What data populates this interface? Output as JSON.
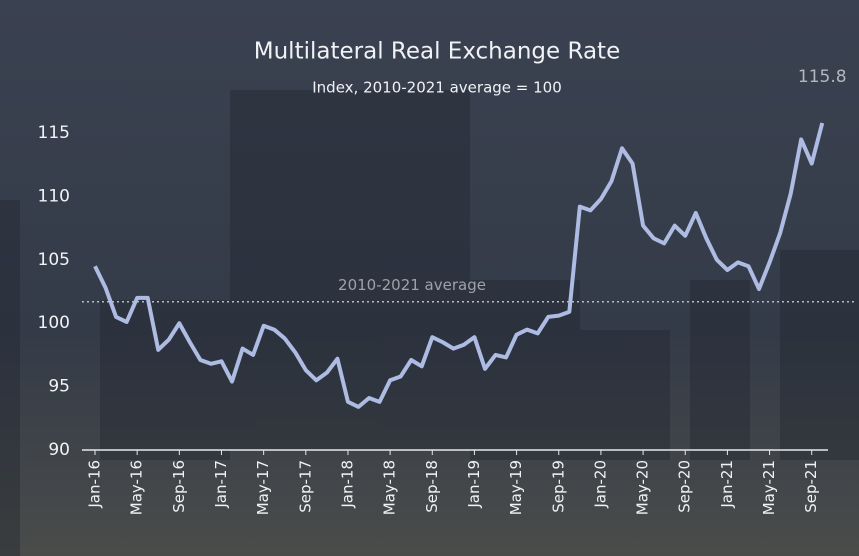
{
  "chart_data": {
    "type": "line",
    "title": "Multilateral Real Exchange Rate",
    "subtitle": "Index, 2010-2021 average = 100",
    "categories": [
      "Jan-16",
      null,
      null,
      null,
      "May-16",
      null,
      null,
      null,
      "Sep-16",
      null,
      null,
      null,
      "Jan-17",
      null,
      null,
      null,
      "May-17",
      null,
      null,
      null,
      "Sep-17",
      null,
      null,
      null,
      "Jan-18",
      null,
      null,
      null,
      "May-18",
      null,
      null,
      null,
      "Sep-18",
      null,
      null,
      null,
      "Jan-19",
      null,
      null,
      null,
      "May-19",
      null,
      null,
      null,
      "Sep-19",
      null,
      null,
      null,
      "Jan-20",
      null,
      null,
      null,
      "May-20",
      null,
      null,
      null,
      "Sep-20",
      null,
      null,
      null,
      "Jan-21",
      null,
      null,
      null,
      "May-21",
      null,
      null,
      null,
      "Sep-21",
      null
    ],
    "series": [
      {
        "name": "Multilateral Real Exchange Rate",
        "color": "#aebbe2",
        "values": [
          104.5,
          102.8,
          100.5,
          100.1,
          102,
          102,
          97.9,
          98.7,
          100,
          98.5,
          97.1,
          96.8,
          97,
          95.4,
          98,
          97.5,
          99.8,
          99.5,
          98.8,
          97.7,
          96.3,
          95.5,
          96.1,
          97.2,
          93.8,
          93.4,
          94.1,
          93.8,
          95.5,
          95.8,
          97.1,
          96.6,
          98.9,
          98.5,
          98,
          98.3,
          98.9,
          96.4,
          97.5,
          97.3,
          99.1,
          99.5,
          99.2,
          100.5,
          100.6,
          100.9,
          109.2,
          108.9,
          109.8,
          111.2,
          113.8,
          112.6,
          107.7,
          106.7,
          106.3,
          107.7,
          106.9,
          108.7,
          106.7,
          105,
          104.2,
          104.8,
          104.5,
          102.7,
          104.8,
          107.1,
          110.2,
          114.5,
          112.6,
          115.8
        ]
      }
    ],
    "reference_line": {
      "label": "2010-2021 average",
      "value": 101.7
    },
    "ylim": [
      90,
      125.5
    ],
    "yticks": [
      90,
      95,
      100,
      105,
      110,
      115
    ],
    "grid": false
  }
}
